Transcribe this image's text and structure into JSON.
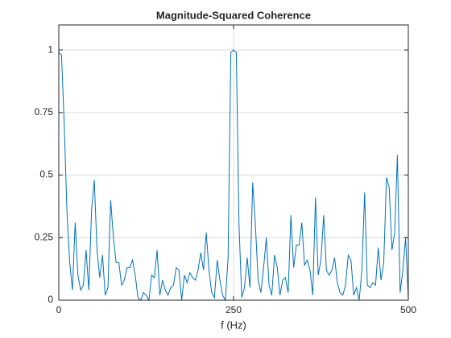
{
  "chart_data": {
    "type": "line",
    "title": "Magnitude-Squared Coherence",
    "xlabel": "f (Hz)",
    "x": [
      0,
      3.90625,
      7.8125,
      11.71875,
      15.625,
      19.53125,
      23.4375,
      27.34375,
      31.25,
      35.15625,
      39.0625,
      42.96875,
      46.875,
      50.78125,
      54.6875,
      58.59375,
      62.5,
      66.40625,
      70.3125,
      74.21875,
      78.125,
      82.03125,
      85.9375,
      89.84375,
      93.75,
      97.65625,
      101.5625,
      105.46875,
      109.375,
      113.28125,
      117.1875,
      121.09375,
      125,
      128.90625,
      132.8125,
      136.71875,
      140.625,
      144.53125,
      148.4375,
      152.34375,
      156.25,
      160.15625,
      164.0625,
      167.96875,
      171.875,
      175.78125,
      179.6875,
      183.59375,
      187.5,
      191.40625,
      195.3125,
      199.21875,
      203.125,
      207.03125,
      210.9375,
      214.84375,
      218.75,
      222.65625,
      226.5625,
      230.46875,
      234.375,
      238.28125,
      242.1875,
      246.09375,
      250,
      253.90625,
      257.8125,
      261.71875,
      265.625,
      269.53125,
      273.4375,
      277.34375,
      281.25,
      285.15625,
      289.0625,
      292.96875,
      296.875,
      300.78125,
      304.6875,
      308.59375,
      312.5,
      316.40625,
      320.3125,
      324.21875,
      328.125,
      332.03125,
      335.9375,
      339.84375,
      343.75,
      347.65625,
      351.5625,
      355.46875,
      359.375,
      363.28125,
      367.1875,
      371.09375,
      375,
      378.90625,
      382.8125,
      386.71875,
      390.625,
      394.53125,
      398.4375,
      402.34375,
      406.25,
      410.15625,
      414.0625,
      417.96875,
      421.875,
      425.78125,
      429.6875,
      433.59375,
      437.5,
      441.40625,
      445.3125,
      449.21875,
      453.125,
      457.03125,
      460.9375,
      464.84375,
      468.75,
      472.65625,
      476.5625,
      480.46875,
      484.375,
      488.28125,
      492.1875,
      496.09375,
      500
    ],
    "series": [
      {
        "color": "#0072bd",
        "values": [
          0.99,
          0.98,
          0.7,
          0.35,
          0.15,
          0.04,
          0.31,
          0.1,
          0.04,
          0.06,
          0.2,
          0.04,
          0.36,
          0.48,
          0.2,
          0.09,
          0.18,
          0.02,
          0.05,
          0.4,
          0.25,
          0.15,
          0.15,
          0.06,
          0.08,
          0.13,
          0.13,
          0.16,
          0.1,
          0.01,
          0,
          0.03,
          0.02,
          0,
          0.1,
          0.09,
          0.2,
          0.02,
          0.08,
          0.04,
          0.02,
          0.05,
          0.06,
          0.13,
          0.12,
          0,
          0.1,
          0.07,
          0.11,
          0.09,
          0.08,
          0.12,
          0.19,
          0.12,
          0.27,
          0.12,
          0.03,
          0.01,
          0.16,
          0.08,
          0.02,
          0,
          0.17,
          0.99,
          1.0,
          0.99,
          0.3,
          0.01,
          0.05,
          0.17,
          0.05,
          0.47,
          0.3,
          0.08,
          0.03,
          0.13,
          0.25,
          0.06,
          0.02,
          0.18,
          0.13,
          0.02,
          0.08,
          0.09,
          0.03,
          0.34,
          0.13,
          0.22,
          0.22,
          0.31,
          0.14,
          0.16,
          0.12,
          0.02,
          0.41,
          0.1,
          0.16,
          0.34,
          0.12,
          0.1,
          0.12,
          0.17,
          0.07,
          0.03,
          0.02,
          0.06,
          0.18,
          0.16,
          0.02,
          0.05,
          0,
          0.12,
          0.43,
          0.06,
          0.05,
          0.07,
          0.06,
          0.21,
          0.08,
          0.15,
          0.49,
          0.45,
          0.2,
          0.27,
          0.58,
          0.03,
          0.12,
          0.25,
          0
        ]
      }
    ],
    "xlim": [
      0,
      500
    ],
    "xticks": [
      0,
      250,
      500
    ],
    "ylim": [
      0,
      1.1
    ],
    "yticks": [
      0,
      0.25,
      0.5,
      0.75,
      1
    ],
    "grid": true
  }
}
